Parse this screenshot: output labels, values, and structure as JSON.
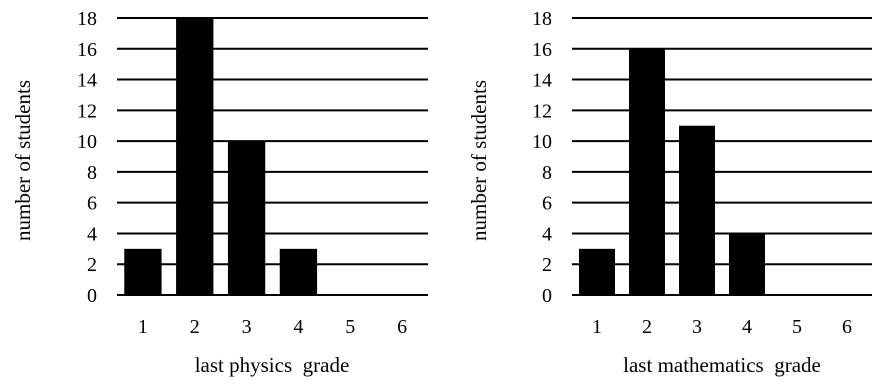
{
  "chart_data": [
    {
      "type": "bar",
      "categories": [
        "1",
        "2",
        "3",
        "4",
        "5",
        "6"
      ],
      "values": [
        3,
        18,
        10,
        3,
        0,
        0
      ],
      "xlabel": "last physics  grade",
      "ylabel": "number of students",
      "ylim": [
        0,
        18
      ],
      "yticks": [
        0,
        2,
        4,
        6,
        8,
        10,
        12,
        14,
        16,
        18
      ],
      "grid": true,
      "bar_color": "#000000"
    },
    {
      "type": "bar",
      "categories": [
        "1",
        "2",
        "3",
        "4",
        "5",
        "6"
      ],
      "values": [
        3,
        16,
        11,
        4,
        0,
        0
      ],
      "xlabel": "last mathematics  grade",
      "ylabel": "number of students",
      "ylim": [
        0,
        18
      ],
      "yticks": [
        0,
        2,
        4,
        6,
        8,
        10,
        12,
        14,
        16,
        18
      ],
      "grid": true,
      "bar_color": "#000000"
    }
  ]
}
